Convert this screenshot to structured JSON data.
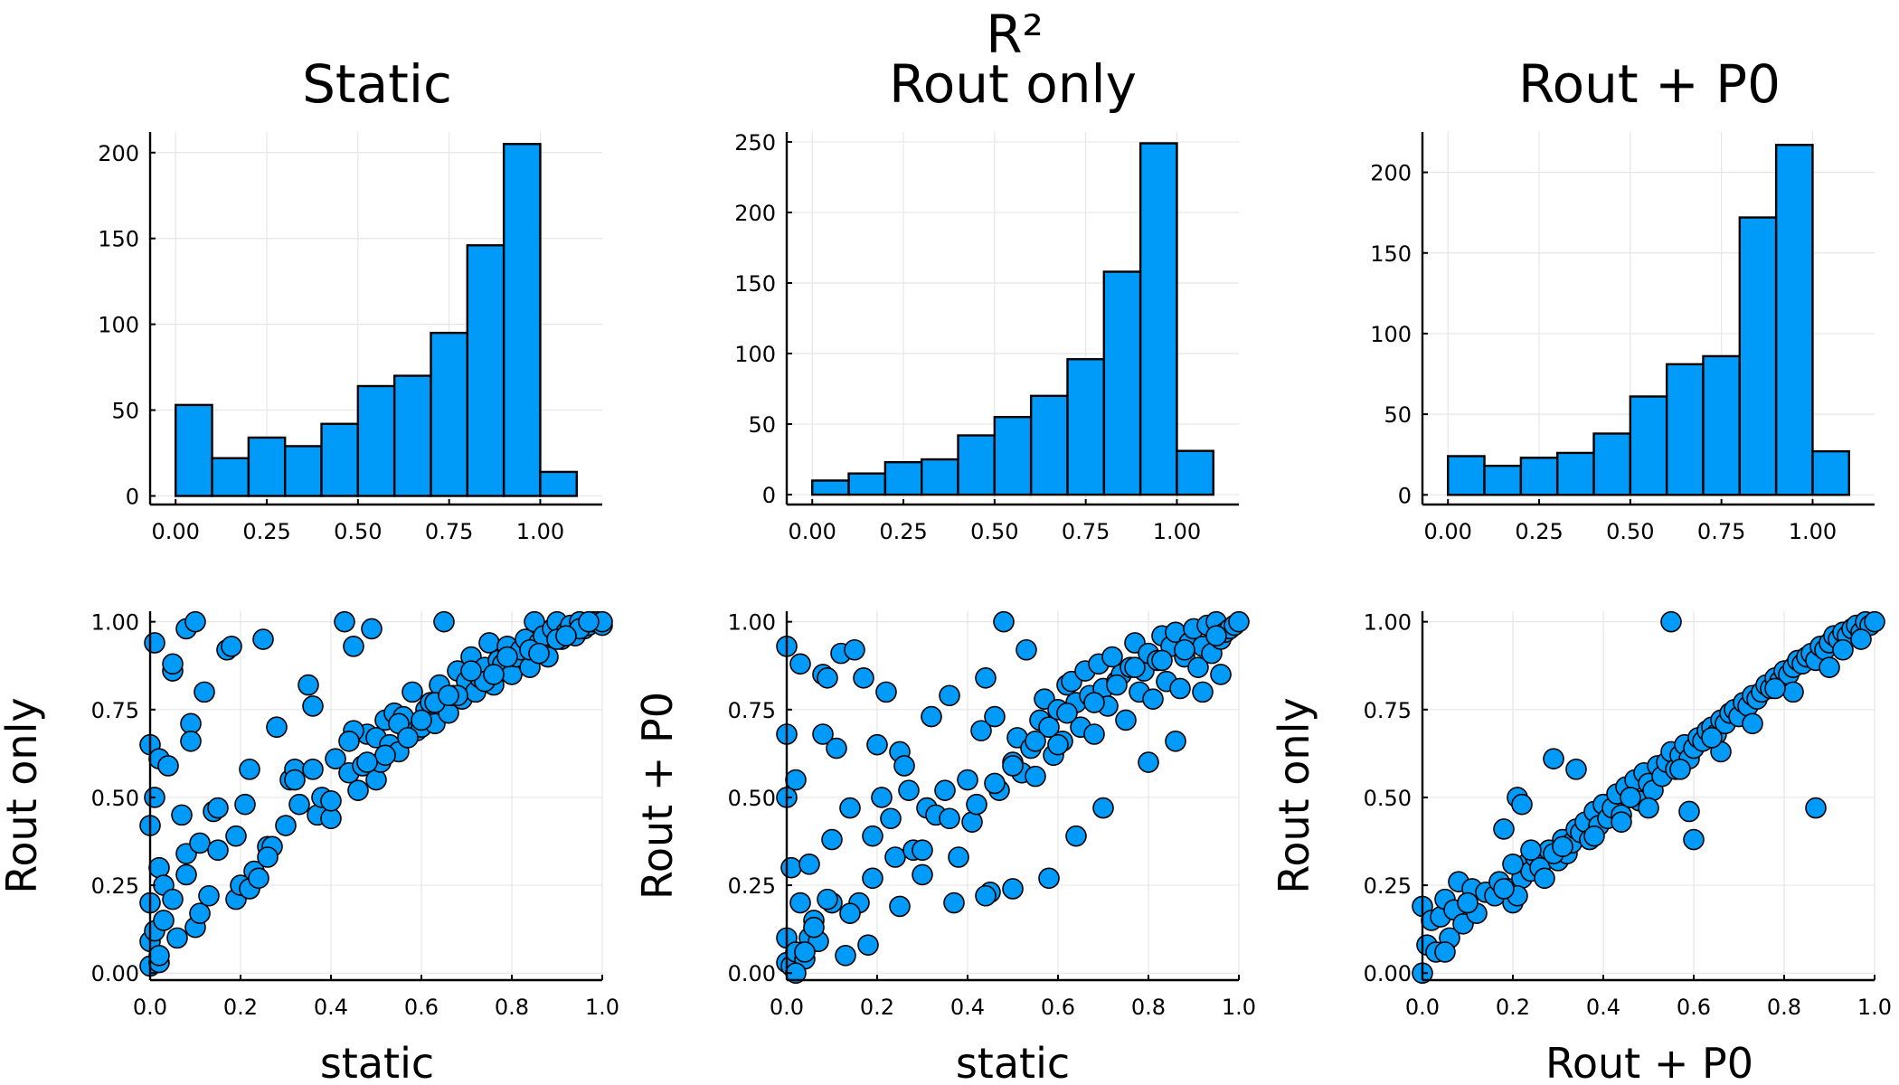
{
  "figure": {
    "title": "R²",
    "colors": {
      "fill": "#009af9",
      "stroke": "#000000",
      "grid": "#e6e6e6"
    }
  },
  "chart_data": [
    {
      "type": "bar",
      "panel": "histogram",
      "title": "Static",
      "xlabel": "",
      "ylabel": "",
      "bin_edges": [
        0.0,
        0.1,
        0.2,
        0.3,
        0.4,
        0.5,
        0.6,
        0.7,
        0.8,
        0.9,
        1.0,
        1.1
      ],
      "values": [
        53,
        22,
        34,
        29,
        42,
        64,
        70,
        95,
        146,
        205,
        14
      ],
      "xlim": [
        -0.07,
        1.17
      ],
      "ylim": [
        -5,
        212
      ],
      "xticks": [
        0.0,
        0.25,
        0.5,
        0.75,
        1.0
      ],
      "xtick_labels": [
        "0.00",
        "0.25",
        "0.50",
        "0.75",
        "1.00"
      ],
      "yticks": [
        0,
        50,
        100,
        150,
        200
      ],
      "ytick_labels": [
        "0",
        "50",
        "100",
        "150",
        "200"
      ],
      "grid": true
    },
    {
      "type": "bar",
      "panel": "histogram",
      "title": "Rout only",
      "xlabel": "",
      "ylabel": "",
      "bin_edges": [
        0.0,
        0.1,
        0.2,
        0.3,
        0.4,
        0.5,
        0.6,
        0.7,
        0.8,
        0.9,
        1.0,
        1.1
      ],
      "values": [
        10,
        15,
        23,
        25,
        42,
        55,
        70,
        96,
        158,
        249,
        31
      ],
      "xlim": [
        -0.07,
        1.17
      ],
      "ylim": [
        -7,
        257
      ],
      "xticks": [
        0.0,
        0.25,
        0.5,
        0.75,
        1.0
      ],
      "xtick_labels": [
        "0.00",
        "0.25",
        "0.50",
        "0.75",
        "1.00"
      ],
      "yticks": [
        0,
        50,
        100,
        150,
        200,
        250
      ],
      "ytick_labels": [
        "0",
        "50",
        "100",
        "150",
        "200",
        "250"
      ],
      "grid": true
    },
    {
      "type": "bar",
      "panel": "histogram",
      "title": "Rout + P0",
      "xlabel": "",
      "ylabel": "",
      "bin_edges": [
        0.0,
        0.1,
        0.2,
        0.3,
        0.4,
        0.5,
        0.6,
        0.7,
        0.8,
        0.9,
        1.0,
        1.1
      ],
      "values": [
        24,
        18,
        23,
        26,
        38,
        61,
        81,
        86,
        172,
        217,
        27
      ],
      "xlim": [
        -0.07,
        1.17
      ],
      "ylim": [
        -6,
        225
      ],
      "xticks": [
        0.0,
        0.25,
        0.5,
        0.75,
        1.0
      ],
      "xtick_labels": [
        "0.00",
        "0.25",
        "0.50",
        "0.75",
        "1.00"
      ],
      "yticks": [
        0,
        50,
        100,
        150,
        200
      ],
      "ytick_labels": [
        "0",
        "50",
        "100",
        "150",
        "200"
      ],
      "grid": true
    },
    {
      "type": "scatter",
      "panel": "scatter",
      "title": "",
      "xlabel": "static",
      "ylabel": "Rout only",
      "xlim": [
        0,
        1
      ],
      "ylim": [
        -0.02,
        1.03
      ],
      "xticks": [
        0,
        0.2,
        0.4,
        0.6,
        0.8,
        1.0
      ],
      "xtick_labels": [
        "0.0",
        "0.2",
        "0.4",
        "0.6",
        "0.8",
        "1.0"
      ],
      "yticks": [
        0,
        0.25,
        0.5,
        0.75,
        1.0
      ],
      "ytick_labels": [
        "0.00",
        "0.25",
        "0.50",
        "0.75",
        "1.00"
      ],
      "grid": true,
      "x": [
        0.0,
        0.0,
        0.0,
        0.0,
        0.0,
        0.01,
        0.01,
        0.01,
        0.02,
        0.02,
        0.02,
        0.03,
        0.03,
        0.04,
        0.05,
        0.05,
        0.06,
        0.07,
        0.08,
        0.08,
        0.09,
        0.09,
        0.1,
        0.1,
        0.11,
        0.12,
        0.13,
        0.14,
        0.15,
        0.17,
        0.18,
        0.19,
        0.2,
        0.21,
        0.22,
        0.22,
        0.23,
        0.24,
        0.25,
        0.26,
        0.27,
        0.28,
        0.3,
        0.31,
        0.32,
        0.33,
        0.35,
        0.36,
        0.37,
        0.38,
        0.4,
        0.41,
        0.43,
        0.44,
        0.45,
        0.46,
        0.47,
        0.48,
        0.49,
        0.5,
        0.5,
        0.51,
        0.52,
        0.53,
        0.54,
        0.55,
        0.56,
        0.57,
        0.58,
        0.59,
        0.6,
        0.61,
        0.62,
        0.63,
        0.64,
        0.65,
        0.66,
        0.67,
        0.68,
        0.69,
        0.7,
        0.71,
        0.72,
        0.73,
        0.74,
        0.75,
        0.76,
        0.77,
        0.78,
        0.79,
        0.8,
        0.81,
        0.82,
        0.83,
        0.84,
        0.85,
        0.86,
        0.87,
        0.88,
        0.89,
        0.9,
        0.91,
        0.92,
        0.93,
        0.94,
        0.95,
        0.96,
        0.97,
        0.98,
        0.99,
        1.0,
        1.0,
        0.02,
        0.05,
        0.08,
        0.11,
        0.15,
        0.19,
        0.26,
        0.32,
        0.4,
        0.45,
        0.52,
        0.6,
        0.68,
        0.74,
        0.79,
        0.84,
        0.9,
        0.95,
        0.36,
        0.44,
        0.55,
        0.63,
        0.71,
        0.48,
        0.57,
        0.66,
        0.76,
        0.86,
        0.92,
        0.97
      ],
      "y": [
        0.02,
        0.09,
        0.2,
        0.42,
        0.65,
        0.12,
        0.5,
        0.94,
        0.03,
        0.3,
        0.61,
        0.25,
        0.15,
        0.59,
        0.86,
        0.88,
        0.1,
        0.45,
        0.98,
        0.34,
        0.71,
        0.66,
        0.13,
        1.0,
        0.17,
        0.8,
        0.22,
        0.46,
        0.47,
        0.92,
        0.93,
        0.21,
        0.25,
        0.48,
        0.24,
        0.58,
        0.29,
        0.27,
        0.95,
        0.36,
        0.36,
        0.7,
        0.42,
        0.55,
        0.58,
        0.48,
        0.82,
        0.76,
        0.45,
        0.5,
        0.44,
        0.61,
        1.0,
        0.57,
        0.93,
        0.52,
        0.59,
        0.68,
        0.98,
        0.55,
        0.67,
        0.6,
        0.72,
        0.65,
        0.74,
        0.63,
        0.73,
        0.68,
        0.8,
        0.69,
        0.7,
        0.75,
        0.77,
        0.71,
        0.82,
        1.0,
        0.74,
        0.79,
        0.86,
        0.78,
        0.83,
        0.9,
        0.8,
        0.84,
        0.87,
        0.94,
        0.82,
        0.89,
        0.88,
        0.93,
        0.85,
        0.9,
        0.92,
        0.95,
        0.87,
        1.0,
        0.94,
        0.96,
        0.9,
        0.98,
        1.0,
        0.95,
        0.97,
        0.99,
        0.96,
        1.0,
        0.98,
        0.99,
        1.0,
        1.0,
        0.99,
        1.0,
        0.05,
        0.21,
        0.28,
        0.37,
        0.35,
        0.39,
        0.33,
        0.55,
        0.49,
        0.69,
        0.62,
        0.72,
        0.79,
        0.83,
        0.9,
        0.92,
        0.95,
        0.98,
        0.58,
        0.66,
        0.71,
        0.77,
        0.86,
        0.6,
        0.67,
        0.79,
        0.85,
        0.91,
        0.96,
        1.0
      ]
    },
    {
      "type": "scatter",
      "panel": "scatter",
      "title": "",
      "xlabel": "static",
      "ylabel": "Rout + P0",
      "xlim": [
        0,
        1
      ],
      "ylim": [
        -0.02,
        1.03
      ],
      "xticks": [
        0,
        0.2,
        0.4,
        0.6,
        0.8,
        1.0
      ],
      "xtick_labels": [
        "0.0",
        "0.2",
        "0.4",
        "0.6",
        "0.8",
        "1.0"
      ],
      "yticks": [
        0,
        0.25,
        0.5,
        0.75,
        1.0
      ],
      "ytick_labels": [
        "0.00",
        "0.25",
        "0.50",
        "0.75",
        "1.00"
      ],
      "grid": true,
      "x": [
        0.0,
        0.0,
        0.0,
        0.0,
        0.0,
        0.01,
        0.01,
        0.02,
        0.02,
        0.03,
        0.03,
        0.04,
        0.05,
        0.05,
        0.06,
        0.07,
        0.08,
        0.08,
        0.09,
        0.1,
        0.1,
        0.11,
        0.12,
        0.13,
        0.14,
        0.15,
        0.16,
        0.17,
        0.18,
        0.19,
        0.2,
        0.21,
        0.22,
        0.23,
        0.24,
        0.25,
        0.26,
        0.27,
        0.28,
        0.3,
        0.31,
        0.32,
        0.33,
        0.35,
        0.36,
        0.37,
        0.38,
        0.4,
        0.41,
        0.42,
        0.43,
        0.44,
        0.45,
        0.46,
        0.47,
        0.48,
        0.5,
        0.51,
        0.52,
        0.53,
        0.54,
        0.55,
        0.56,
        0.57,
        0.58,
        0.59,
        0.6,
        0.61,
        0.62,
        0.63,
        0.64,
        0.65,
        0.66,
        0.67,
        0.68,
        0.69,
        0.7,
        0.71,
        0.72,
        0.73,
        0.74,
        0.75,
        0.76,
        0.77,
        0.78,
        0.79,
        0.8,
        0.81,
        0.82,
        0.83,
        0.84,
        0.85,
        0.86,
        0.87,
        0.88,
        0.89,
        0.9,
        0.91,
        0.92,
        0.93,
        0.94,
        0.95,
        0.96,
        0.97,
        0.98,
        0.99,
        1.0,
        0.02,
        0.04,
        0.06,
        0.09,
        0.14,
        0.19,
        0.25,
        0.3,
        0.36,
        0.44,
        0.5,
        0.58,
        0.64,
        0.7,
        0.8,
        0.86,
        0.92,
        0.96,
        0.46,
        0.55,
        0.62,
        0.73,
        0.83,
        0.5,
        0.6,
        0.68,
        0.77,
        0.88,
        0.95
      ],
      "y": [
        0.03,
        0.1,
        0.5,
        0.68,
        0.93,
        0.02,
        0.3,
        0.06,
        0.55,
        0.2,
        0.88,
        0.04,
        0.31,
        0.1,
        0.15,
        0.09,
        0.68,
        0.85,
        0.84,
        0.38,
        0.2,
        0.64,
        0.91,
        0.05,
        0.47,
        0.92,
        0.2,
        0.84,
        0.08,
        0.27,
        0.65,
        0.5,
        0.8,
        0.44,
        0.33,
        0.63,
        0.59,
        0.52,
        0.35,
        0.28,
        0.47,
        0.73,
        0.45,
        0.52,
        0.79,
        0.2,
        0.33,
        0.55,
        0.43,
        0.48,
        0.69,
        0.84,
        0.23,
        0.73,
        0.52,
        1.0,
        0.6,
        0.67,
        0.57,
        0.92,
        0.64,
        0.56,
        0.72,
        0.78,
        0.7,
        0.62,
        0.75,
        0.66,
        0.82,
        0.83,
        0.77,
        0.7,
        0.86,
        0.79,
        0.68,
        0.88,
        0.81,
        0.76,
        0.9,
        0.83,
        0.85,
        0.72,
        0.87,
        0.94,
        0.8,
        0.86,
        0.91,
        0.78,
        0.89,
        0.96,
        0.83,
        0.93,
        0.97,
        0.81,
        0.9,
        0.94,
        0.98,
        0.87,
        0.93,
        0.99,
        0.91,
        1.0,
        0.95,
        0.97,
        0.98,
        0.99,
        1.0,
        0.0,
        0.06,
        0.13,
        0.21,
        0.17,
        0.39,
        0.19,
        0.35,
        0.44,
        0.22,
        0.24,
        0.27,
        0.39,
        0.47,
        0.6,
        0.66,
        0.8,
        0.85,
        0.54,
        0.66,
        0.74,
        0.82,
        0.89,
        0.59,
        0.65,
        0.77,
        0.87,
        0.92,
        0.96
      ]
    },
    {
      "type": "scatter",
      "panel": "scatter",
      "title": "",
      "xlabel": "Rout + P0",
      "ylabel": "Rout only",
      "xlim": [
        0,
        1
      ],
      "ylim": [
        -0.02,
        1.03
      ],
      "xticks": [
        0,
        0.2,
        0.4,
        0.6,
        0.8,
        1.0
      ],
      "xtick_labels": [
        "0.0",
        "0.2",
        "0.4",
        "0.6",
        "0.8",
        "1.0"
      ],
      "yticks": [
        0,
        0.25,
        0.5,
        0.75,
        1.0
      ],
      "ytick_labels": [
        "0.00",
        "0.25",
        "0.50",
        "0.75",
        "1.00"
      ],
      "grid": true,
      "x": [
        0.0,
        0.0,
        0.01,
        0.02,
        0.03,
        0.04,
        0.05,
        0.06,
        0.07,
        0.08,
        0.09,
        0.1,
        0.11,
        0.12,
        0.14,
        0.16,
        0.17,
        0.18,
        0.19,
        0.2,
        0.21,
        0.22,
        0.23,
        0.24,
        0.25,
        0.26,
        0.27,
        0.28,
        0.29,
        0.3,
        0.31,
        0.32,
        0.33,
        0.34,
        0.35,
        0.36,
        0.37,
        0.38,
        0.39,
        0.4,
        0.41,
        0.42,
        0.43,
        0.44,
        0.45,
        0.46,
        0.47,
        0.48,
        0.49,
        0.5,
        0.51,
        0.52,
        0.53,
        0.54,
        0.55,
        0.56,
        0.57,
        0.58,
        0.59,
        0.6,
        0.61,
        0.62,
        0.63,
        0.64,
        0.65,
        0.66,
        0.67,
        0.68,
        0.69,
        0.7,
        0.71,
        0.72,
        0.73,
        0.74,
        0.75,
        0.76,
        0.77,
        0.78,
        0.79,
        0.8,
        0.81,
        0.82,
        0.83,
        0.84,
        0.85,
        0.86,
        0.87,
        0.88,
        0.89,
        0.9,
        0.91,
        0.92,
        0.93,
        0.94,
        0.95,
        0.96,
        0.97,
        0.98,
        0.99,
        1.0,
        0.55,
        0.87,
        0.59,
        0.6,
        0.29,
        0.34,
        0.2,
        0.22,
        0.21,
        0.18,
        0.1,
        0.05,
        0.38,
        0.44,
        0.5,
        0.57,
        0.66,
        0.73,
        0.82,
        0.9,
        0.97,
        0.24,
        0.31,
        0.46,
        0.64,
        0.78,
        0.93
      ],
      "y": [
        0.0,
        0.19,
        0.08,
        0.15,
        0.06,
        0.16,
        0.21,
        0.1,
        0.18,
        0.26,
        0.14,
        0.2,
        0.24,
        0.17,
        0.23,
        0.22,
        0.26,
        0.41,
        0.24,
        0.2,
        0.5,
        0.27,
        0.31,
        0.29,
        0.33,
        0.3,
        0.27,
        0.35,
        0.61,
        0.32,
        0.38,
        0.34,
        0.37,
        0.41,
        0.4,
        0.43,
        0.38,
        0.46,
        0.42,
        0.48,
        0.44,
        0.47,
        0.51,
        0.45,
        0.53,
        0.5,
        0.55,
        0.49,
        0.57,
        0.54,
        0.52,
        0.59,
        0.56,
        0.6,
        0.63,
        0.58,
        0.62,
        0.65,
        0.61,
        0.64,
        0.67,
        0.66,
        0.69,
        0.7,
        0.68,
        0.72,
        0.71,
        0.74,
        0.75,
        0.73,
        0.77,
        0.76,
        0.79,
        0.78,
        0.8,
        0.82,
        0.81,
        0.84,
        0.83,
        0.86,
        0.85,
        0.87,
        0.89,
        0.88,
        0.9,
        0.91,
        0.89,
        0.93,
        0.92,
        0.94,
        0.96,
        0.95,
        0.97,
        0.96,
        0.98,
        0.99,
        0.97,
        1.0,
        0.99,
        1.0,
        1.0,
        0.47,
        0.46,
        0.38,
        0.34,
        0.58,
        0.31,
        0.48,
        0.22,
        0.24,
        0.2,
        0.06,
        0.39,
        0.43,
        0.47,
        0.58,
        0.63,
        0.71,
        0.8,
        0.87,
        0.95,
        0.35,
        0.36,
        0.5,
        0.67,
        0.81,
        0.92
      ]
    }
  ]
}
